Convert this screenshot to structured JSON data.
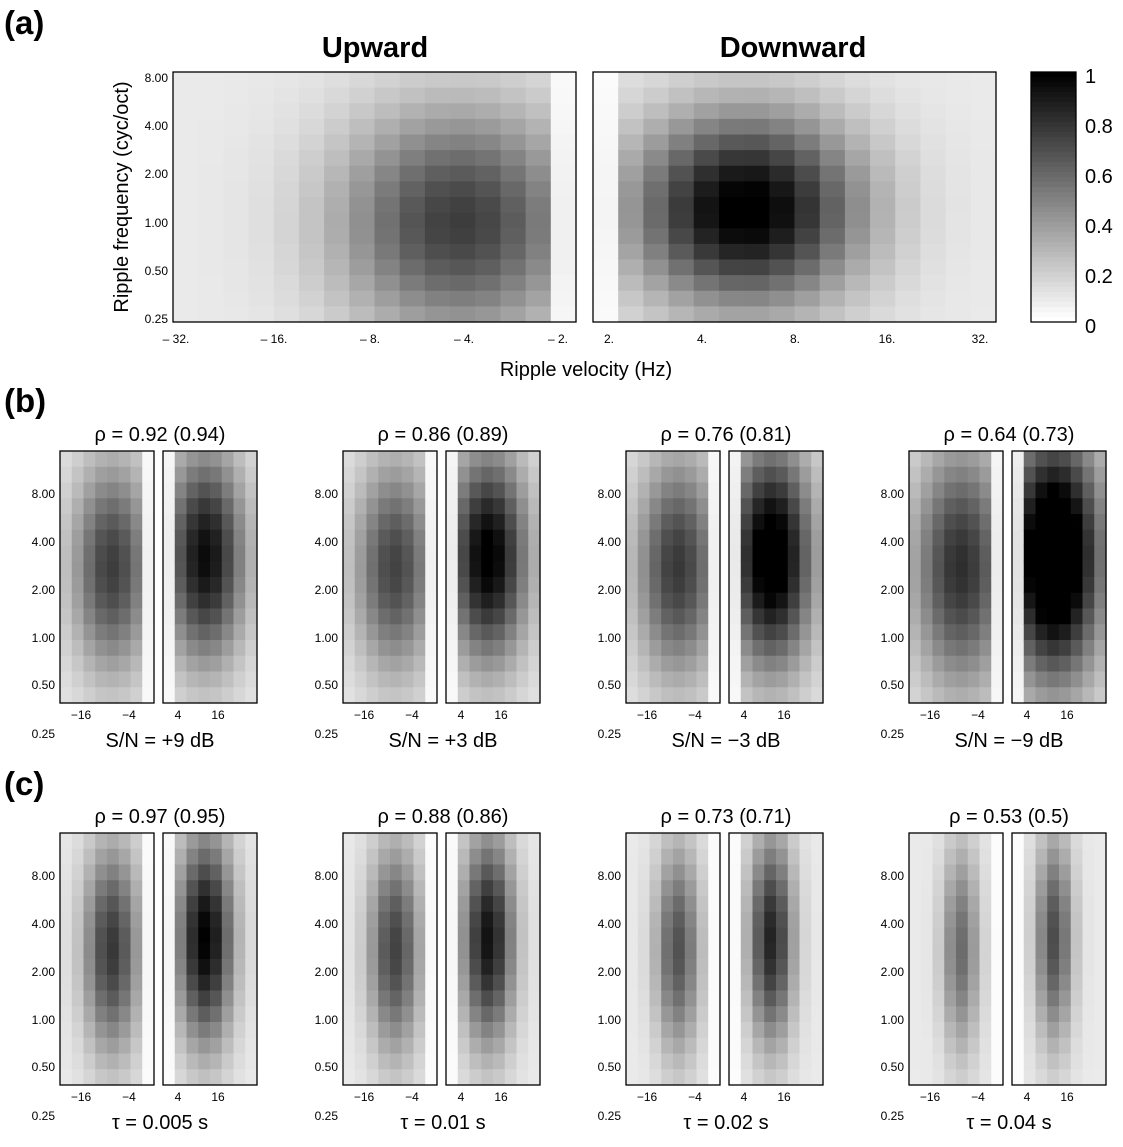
{
  "chart_data": [
    {
      "panel": "(a)",
      "type": "heatmap",
      "titles": [
        "Upward",
        "Downward"
      ],
      "xlabel": "Ripple velocity (Hz)",
      "ylabel": "Ripple frequency (cyc/oct)",
      "ytick_labels": [
        "8.00",
        "4.00",
        "2.00",
        "1.00",
        "0.50",
        "0.25"
      ],
      "xtick_labels_up": [
        "– 32.",
        "– 16.",
        "– 8.",
        "– 4.",
        "– 2."
      ],
      "xtick_labels_down": [
        "2.",
        "4.",
        "8.",
        "16.",
        "32."
      ],
      "colorbar_ticks": [
        "0",
        "0.2",
        "0.4",
        "0.6",
        "0.8",
        "1"
      ],
      "colorbar_range": [
        0,
        1
      ],
      "colormap": "gray_reversed",
      "grid": [
        16,
        16
      ],
      "up": {
        "peak_x": 0.71,
        "peak_y": 0.6,
        "sx": 0.3,
        "sy": 0.45,
        "amp": 0.68
      },
      "down": {
        "peak_x": 0.38,
        "peak_y": 0.55,
        "sx": 0.28,
        "sy": 0.38,
        "amp": 0.96
      }
    },
    {
      "panel": "(b)",
      "type": "heatmap",
      "ytick_labels": [
        "8.00",
        "4.00",
        "2.00",
        "1.00",
        "0.50",
        "0.25"
      ],
      "xtick_labels_up": [
        "−16",
        "−4"
      ],
      "xtick_labels_down": [
        "4",
        "16"
      ],
      "grid": [
        8,
        16
      ],
      "cells": [
        {
          "rho_label": "ρ = 0.92 (0.94)",
          "caption": "S/N = +9 dB",
          "up_amp": 0.68,
          "down_amp": 0.88,
          "sx": 0.42,
          "sy": 0.42
        },
        {
          "rho_label": "ρ = 0.86 (0.89)",
          "caption": "S/N = +3 dB",
          "up_amp": 0.66,
          "down_amp": 0.95,
          "sx": 0.42,
          "sy": 0.42
        },
        {
          "rho_label": "ρ = 0.76 (0.81)",
          "caption": "S/N = −3 dB",
          "up_amp": 0.7,
          "down_amp": 1.05,
          "sx": 0.44,
          "sy": 0.44
        },
        {
          "rho_label": "ρ = 0.64 (0.73)",
          "caption": "S/N = −9 dB",
          "up_amp": 0.74,
          "down_amp": 1.25,
          "sx": 0.5,
          "sy": 0.48
        }
      ]
    },
    {
      "panel": "(c)",
      "type": "heatmap",
      "ytick_labels": [
        "8.00",
        "4.00",
        "2.00",
        "1.00",
        "0.50",
        "0.25"
      ],
      "xtick_labels_up": [
        "−16",
        "−4"
      ],
      "xtick_labels_down": [
        "4",
        "16"
      ],
      "grid": [
        8,
        16
      ],
      "cells": [
        {
          "rho_label": "ρ = 0.97 (0.95)",
          "caption": "τ = 0.005 s",
          "up_amp": 0.7,
          "down_amp": 0.92,
          "sx": 0.3,
          "sy": 0.42
        },
        {
          "rho_label": "ρ = 0.88 (0.86)",
          "caption": "τ = 0.01 s",
          "up_amp": 0.66,
          "down_amp": 0.85,
          "sx": 0.28,
          "sy": 0.42
        },
        {
          "rho_label": "ρ = 0.73 (0.71)",
          "caption": "τ = 0.02 s",
          "up_amp": 0.6,
          "down_amp": 0.78,
          "sx": 0.24,
          "sy": 0.42
        },
        {
          "rho_label": "ρ = 0.53 (0.5)",
          "caption": "τ = 0.04 s",
          "up_amp": 0.5,
          "down_amp": 0.62,
          "sx": 0.2,
          "sy": 0.42
        }
      ]
    }
  ]
}
